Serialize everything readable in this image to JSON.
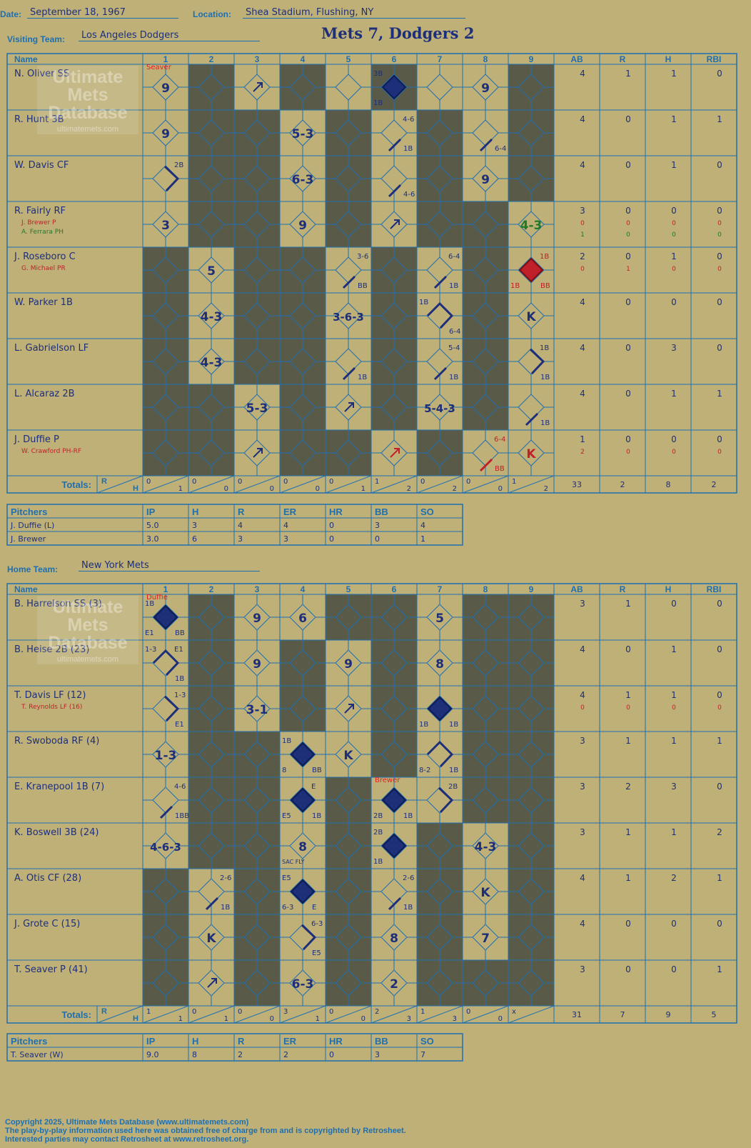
{
  "header": {
    "date_label": "Date:",
    "date": "September 18, 1967",
    "location_label": "Location:",
    "location": "Shea Stadium, Flushing, NY",
    "visiting_label": "Visiting Team:",
    "visiting_team": "Los Angeles Dodgers",
    "home_label": "Home Team:",
    "home_team": "New York Mets",
    "title": "Mets 7, Dodgers 2"
  },
  "columns": {
    "name": "Name",
    "innings": [
      "1",
      "2",
      "3",
      "4",
      "5",
      "6",
      "7",
      "8",
      "9"
    ],
    "stats": [
      "AB",
      "R",
      "H",
      "RBI"
    ]
  },
  "totals_label": "Totals:",
  "rh_labels": [
    "R",
    "H"
  ],
  "watermark": [
    "Ultimate",
    "Mets",
    "Database",
    "ultimatemets.com"
  ],
  "colors": {
    "background": "#bfb078",
    "grid": "#1e6fb0",
    "dark_cell": "#5a5a48",
    "ink": "#1e2f7a",
    "red": "#c0202a",
    "green": "#1f7a2a"
  },
  "visitors": {
    "rows": [
      {
        "name": "N. Oliver SS",
        "subs": [],
        "stats": [
          [
            "4",
            "1",
            "1",
            "0"
          ]
        ],
        "dark": [
          2,
          4,
          6,
          9
        ],
        "cells": {
          "1": {
            "t": "9",
            "note": "Seaver"
          },
          "3": {
            "arrow": true
          },
          "6": {
            "run": true,
            "tl": "3B",
            "bl": "1B"
          },
          "8": {
            "t": "9"
          }
        }
      },
      {
        "name": "R. Hunt 3B",
        "subs": [],
        "stats": [
          [
            "4",
            "0",
            "1",
            "1"
          ]
        ],
        "dark": [
          2,
          3,
          5,
          7,
          9
        ],
        "cells": {
          "1": {
            "t": "9"
          },
          "4": {
            "t": "5-3"
          },
          "6": {
            "hit": true,
            "tr": "4-6",
            "br": "1B"
          },
          "8": {
            "hit": true,
            "br": "6-4"
          }
        }
      },
      {
        "name": "W. Davis CF",
        "subs": [],
        "stats": [
          [
            "4",
            "0",
            "1",
            "0"
          ]
        ],
        "dark": [
          2,
          3,
          5,
          7,
          9
        ],
        "cells": {
          "1": {
            "path": 2,
            "tr": "2B"
          },
          "4": {
            "t": "6-3"
          },
          "6": {
            "hit": true,
            "br": "4-6"
          },
          "8": {
            "t": "9"
          }
        }
      },
      {
        "name": "R. Fairly RF",
        "subs": [
          {
            "n": "J. Brewer P",
            "c": "red"
          },
          {
            "n": "A. Ferrara PH",
            "c": "green"
          }
        ],
        "stats": [
          [
            "3",
            "0",
            "0",
            "0"
          ],
          [
            "0",
            "0",
            "0",
            "0"
          ],
          [
            "1",
            "0",
            "0",
            "0"
          ]
        ],
        "dark": [
          2,
          3,
          5,
          7,
          8
        ],
        "cells": {
          "1": {
            "t": "3"
          },
          "4": {
            "t": "9"
          },
          "6": {
            "arrow": true
          },
          "9": {
            "t": "4-3",
            "c": "green"
          }
        }
      },
      {
        "name": "J. Roseboro C",
        "subs": [
          {
            "n": "G. Michael PR",
            "c": "red"
          }
        ],
        "stats": [
          [
            "2",
            "0",
            "1",
            "0"
          ],
          [
            "0",
            "1",
            "0",
            "0"
          ]
        ],
        "dark": [
          1,
          3,
          4,
          6,
          8
        ],
        "cells": {
          "2": {
            "t": "5"
          },
          "5": {
            "hit": true,
            "tr": "3-6",
            "br": "BB"
          },
          "7": {
            "hit": true,
            "tr": "6-4",
            "br": "1B"
          },
          "9": {
            "run": true,
            "red": true,
            "tr": "1B",
            "bl": "1B",
            "br": "BB"
          }
        }
      },
      {
        "name": "W. Parker 1B",
        "subs": [],
        "stats": [
          [
            "4",
            "0",
            "0",
            "0"
          ]
        ],
        "dark": [
          1,
          3,
          4,
          6,
          8
        ],
        "cells": {
          "2": {
            "t": "4-3"
          },
          "5": {
            "t": "3-6-3"
          },
          "7": {
            "path": 3,
            "tl": "1B",
            "br": "6-4"
          },
          "9": {
            "t": "K"
          }
        }
      },
      {
        "name": "L. Gabrielson LF",
        "subs": [],
        "stats": [
          [
            "4",
            "0",
            "3",
            "0"
          ]
        ],
        "dark": [
          1,
          3,
          4,
          6,
          8
        ],
        "cells": {
          "2": {
            "t": "4-3"
          },
          "5": {
            "hit": true,
            "br": "1B"
          },
          "7": {
            "hit": true,
            "tr": "5-4",
            "br": "1B"
          },
          "9": {
            "path": 2,
            "tr": "1B",
            "br": "1B"
          }
        }
      },
      {
        "name": "L. Alcaraz 2B",
        "subs": [],
        "stats": [
          [
            "4",
            "0",
            "1",
            "1"
          ]
        ],
        "dark": [
          1,
          2,
          4,
          6,
          8
        ],
        "cells": {
          "3": {
            "t": "5-3"
          },
          "5": {
            "arrow": true
          },
          "7": {
            "t": "5-4-3"
          },
          "9": {
            "hit": true,
            "br": "1B"
          }
        }
      },
      {
        "name": "J. Duffie P",
        "subs": [
          {
            "n": "W. Crawford PH-RF",
            "c": "red"
          }
        ],
        "stats": [
          [
            "1",
            "0",
            "0",
            "0"
          ],
          [
            "2",
            "0",
            "0",
            "0"
          ]
        ],
        "dark": [
          1,
          2,
          4,
          5,
          7
        ],
        "cells": {
          "3": {
            "arrow": true
          },
          "6": {
            "arrow": true,
            "red": true
          },
          "8": {
            "hit": true,
            "red": true,
            "tr": "6-4",
            "br": "BB"
          },
          "9": {
            "t": "K",
            "c": "red"
          }
        }
      }
    ],
    "totals": {
      "runs": [
        "0",
        "0",
        "0",
        "0",
        "0",
        "1",
        "0",
        "0",
        "1"
      ],
      "hits": [
        "1",
        "0",
        "0",
        "0",
        "1",
        "2",
        "2",
        "0",
        "2"
      ],
      "stats": [
        "33",
        "2",
        "8",
        "2"
      ]
    },
    "pitchers": {
      "headers": [
        "Pitchers",
        "IP",
        "H",
        "R",
        "ER",
        "HR",
        "BB",
        "SO"
      ],
      "rows": [
        [
          "J. Duffie (L)",
          "5.0",
          "3",
          "4",
          "4",
          "0",
          "3",
          "4"
        ],
        [
          "J. Brewer",
          "3.0",
          "6",
          "3",
          "3",
          "0",
          "0",
          "1"
        ]
      ]
    }
  },
  "home": {
    "rows": [
      {
        "name": "B. Harrelson SS (3)",
        "subs": [],
        "stats": [
          [
            "3",
            "1",
            "0",
            "0"
          ]
        ],
        "dark": [
          2,
          5,
          6,
          8,
          9
        ],
        "cells": {
          "1": {
            "run": true,
            "tl": "1B",
            "bl": "E1",
            "br": "BB",
            "note": "Duffie"
          },
          "3": {
            "t": "9"
          },
          "4": {
            "t": "6"
          },
          "7": {
            "t": "5"
          }
        }
      },
      {
        "name": "B. Heise 2B (23)",
        "subs": [],
        "stats": [
          [
            "4",
            "0",
            "1",
            "0"
          ]
        ],
        "dark": [
          2,
          4,
          6,
          8,
          9
        ],
        "cells": {
          "1": {
            "path": 3,
            "tl": "1-3",
            "tr": "E1",
            "br": "1B"
          },
          "3": {
            "t": "9"
          },
          "5": {
            "t": "9"
          },
          "7": {
            "t": "8"
          }
        }
      },
      {
        "name": "T. Davis LF (12)",
        "subs": [
          {
            "n": "T. Reynolds LF (16)",
            "c": "red"
          }
        ],
        "stats": [
          [
            "4",
            "1",
            "1",
            "0"
          ],
          [
            "0",
            "0",
            "0",
            "0"
          ]
        ],
        "dark": [
          2,
          4,
          6,
          8,
          9
        ],
        "cells": {
          "1": {
            "path": 2,
            "tr": "1-3",
            "br": "E1"
          },
          "3": {
            "t": "3-1"
          },
          "5": {
            "arrow": true
          },
          "7": {
            "run": true,
            "bl": "1B",
            "br": "1B"
          }
        }
      },
      {
        "name": "R. Swoboda RF (4)",
        "subs": [],
        "stats": [
          [
            "3",
            "1",
            "1",
            "1"
          ]
        ],
        "dark": [
          2,
          3,
          6,
          8,
          9
        ],
        "cells": {
          "1": {
            "t": "1-3"
          },
          "4": {
            "run": true,
            "tl": "1B",
            "bl": "8",
            "br": "BB"
          },
          "5": {
            "t": "K"
          },
          "7": {
            "path": 3,
            "bl": "8-2",
            "br": "1B"
          }
        }
      },
      {
        "name": "E. Kranepool 1B (7)",
        "subs": [],
        "stats": [
          [
            "3",
            "2",
            "3",
            "0"
          ]
        ],
        "dark": [
          2,
          3,
          5,
          8,
          9
        ],
        "cells": {
          "1": {
            "hit": true,
            "tr": "4-6",
            "br": "1BB"
          },
          "4": {
            "run": true,
            "tr": "E",
            "bl": "E5",
            "br": "1B"
          },
          "6": {
            "run": true,
            "note": "Brewer",
            "bl": "2B",
            "br": "1B"
          },
          "7": {
            "path": 2,
            "tr": "2B"
          }
        }
      },
      {
        "name": "K. Boswell 3B (24)",
        "subs": [],
        "stats": [
          [
            "3",
            "1",
            "1",
            "2"
          ]
        ],
        "dark": [
          2,
          3,
          5,
          7,
          9
        ],
        "cells": {
          "1": {
            "t": "4-6-3"
          },
          "4": {
            "t": "8",
            "bl": "SAC FLY"
          },
          "6": {
            "run": true,
            "tl": "2B",
            "bl": "1B"
          },
          "8": {
            "t": "4-3"
          }
        }
      },
      {
        "name": "A. Otis CF (28)",
        "subs": [],
        "stats": [
          [
            "4",
            "1",
            "2",
            "1"
          ]
        ],
        "dark": [
          1,
          3,
          5,
          7,
          9
        ],
        "cells": {
          "2": {
            "hit": true,
            "tr": "2-6",
            "br": "1B"
          },
          "4": {
            "run": true,
            "tl": "E5",
            "bl": "6-3",
            "br": "E"
          },
          "6": {
            "hit": true,
            "tr": "2-6",
            "br": "1B"
          },
          "8": {
            "t": "K"
          }
        }
      },
      {
        "name": "J. Grote C (15)",
        "subs": [],
        "stats": [
          [
            "4",
            "0",
            "0",
            "0"
          ]
        ],
        "dark": [
          1,
          3,
          5,
          7,
          9
        ],
        "cells": {
          "2": {
            "t": "K"
          },
          "4": {
            "path": 2,
            "tr": "6-3",
            "br": "E5"
          },
          "6": {
            "t": "8"
          },
          "8": {
            "t": "7"
          }
        }
      },
      {
        "name": "T. Seaver P (41)",
        "subs": [],
        "stats": [
          [
            "3",
            "0",
            "0",
            "1"
          ]
        ],
        "dark": [
          1,
          3,
          5,
          7,
          8,
          9
        ],
        "cells": {
          "2": {
            "arrow": true
          },
          "4": {
            "t": "6-3"
          },
          "6": {
            "t": "2"
          }
        }
      }
    ],
    "totals": {
      "runs": [
        "1",
        "0",
        "0",
        "3",
        "0",
        "2",
        "1",
        "0",
        "x"
      ],
      "hits": [
        "1",
        "1",
        "0",
        "1",
        "0",
        "3",
        "3",
        "0",
        ""
      ],
      "stats": [
        "31",
        "7",
        "9",
        "5"
      ]
    },
    "pitchers": {
      "headers": [
        "Pitchers",
        "IP",
        "H",
        "R",
        "ER",
        "HR",
        "BB",
        "SO"
      ],
      "rows": [
        [
          "T. Seaver (W)",
          "9.0",
          "8",
          "2",
          "2",
          "0",
          "3",
          "7"
        ]
      ]
    }
  },
  "footer": [
    "Copyright 2025, Ultimate Mets Database (www.ultimatemets.com)",
    "The play-by-play information used here was obtained free of charge from and is copyrighted by Retrosheet.",
    "Interested parties may contact Retrosheet at www.retrosheet.org."
  ]
}
